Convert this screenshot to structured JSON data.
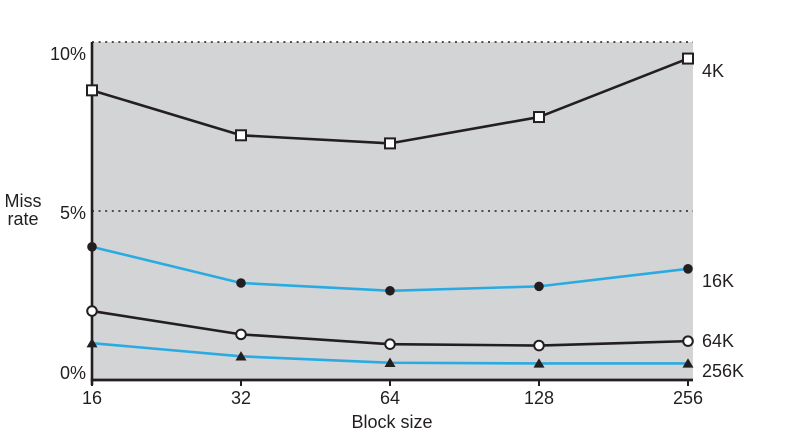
{
  "chart_data": {
    "type": "line",
    "title": "",
    "xlabel": "Block size",
    "ylabel": "Miss rate",
    "x": [
      16,
      32,
      64,
      128,
      256
    ],
    "x_scale": "log2",
    "xtick_labels": [
      "16",
      "32",
      "64",
      "128",
      "256"
    ],
    "ylim": [
      0,
      10
    ],
    "yticks": [
      {
        "value": 0,
        "label": "0%"
      },
      {
        "value": 5,
        "label": "5%"
      },
      {
        "value": 10,
        "label": "10%"
      }
    ],
    "gridlines": {
      "style": "dotted",
      "values": [
        5,
        10
      ]
    },
    "series": [
      {
        "name": "4K",
        "values": [
          8.57,
          7.24,
          7.0,
          7.78,
          9.51
        ],
        "color": "#231f20",
        "marker": "open-square",
        "marker_color": "#231f20"
      },
      {
        "name": "16K",
        "values": [
          3.94,
          2.87,
          2.64,
          2.77,
          3.29
        ],
        "color": "#29abe2",
        "marker": "filled-circle",
        "marker_color": "#231f20"
      },
      {
        "name": "64K",
        "values": [
          2.04,
          1.35,
          1.06,
          1.02,
          1.15
        ],
        "color": "#231f20",
        "marker": "open-circle",
        "marker_color": "#231f20"
      },
      {
        "name": "256K",
        "values": [
          1.09,
          0.7,
          0.51,
          0.49,
          0.49
        ],
        "color": "#29abe2",
        "marker": "filled-triangle",
        "marker_color": "#231f20"
      }
    ],
    "legend": {
      "position": "right-of-line-ends",
      "label_dy": [
        12,
        12,
        0,
        8
      ]
    },
    "style": {
      "plot_bg": "#d3d4d6",
      "axis_color": "#231f20",
      "grid_color": "#3a3a3a",
      "text_color": "#231f20",
      "page_bg": "#ffffff"
    }
  }
}
